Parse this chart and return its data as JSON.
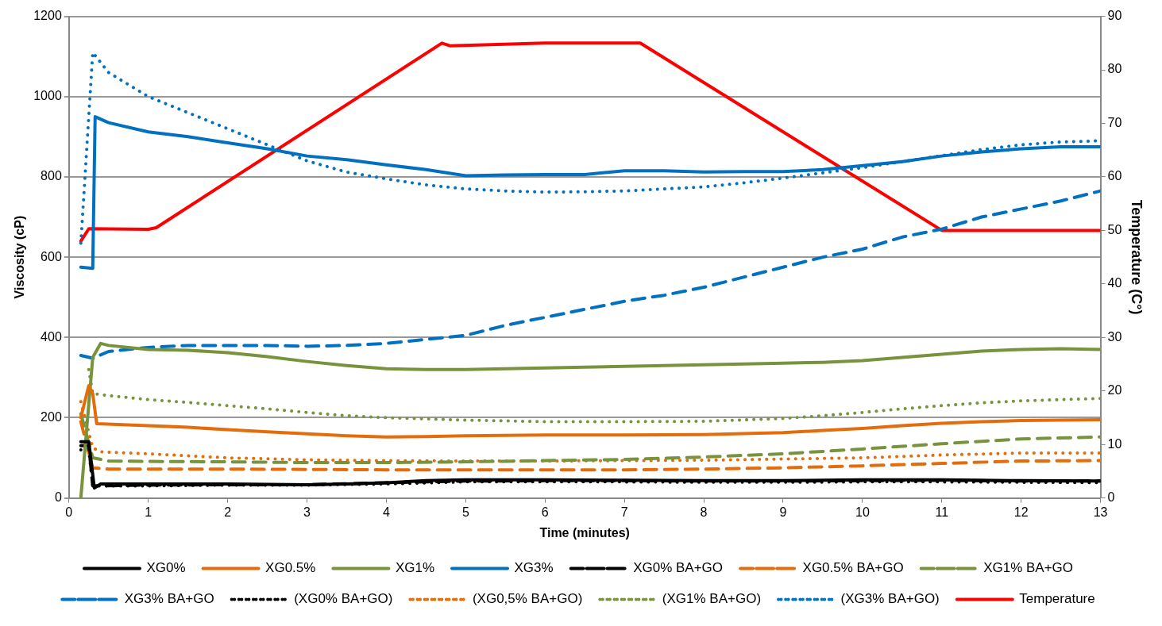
{
  "chart_data": {
    "type": "line",
    "xlabel": "Time (minutes)",
    "ylabel": "Viscosity (cP)",
    "y2label": "Temperature (C°)",
    "xlim": [
      0,
      13
    ],
    "xticks": [
      0,
      1,
      2,
      3,
      4,
      5,
      6,
      7,
      8,
      9,
      10,
      11,
      12,
      13
    ],
    "ylim": [
      0,
      1200
    ],
    "yticks": [
      0,
      200,
      400,
      600,
      800,
      1000,
      1200
    ],
    "y2lim": [
      0,
      90
    ],
    "y2ticks": [
      0,
      10,
      20,
      30,
      40,
      50,
      60,
      70,
      80,
      90
    ],
    "grid": "y",
    "legend": "bottom",
    "marker": "none",
    "series": [
      {
        "name": "XG0%",
        "color": "#000000",
        "line_style": "solid",
        "x": [
          0.15,
          0.25,
          0.32,
          0.4,
          1,
          2,
          3,
          3.5,
          4,
          4.5,
          5,
          6,
          7,
          8,
          9,
          10,
          11,
          12,
          13
        ],
        "values": [
          140,
          140,
          25,
          35,
          35,
          35,
          33,
          35,
          38,
          43,
          45,
          45,
          44,
          43,
          43,
          45,
          45,
          43,
          42
        ]
      },
      {
        "name": "XG0.5%",
        "color": "#e46c0a",
        "line_style": "solid",
        "x": [
          0.15,
          0.25,
          0.3,
          0.35,
          1,
          1.5,
          2,
          2.5,
          3,
          3.5,
          4,
          4.5,
          5,
          6,
          7,
          8,
          9,
          9.5,
          10,
          10.5,
          11,
          11.5,
          12,
          13
        ],
        "values": [
          200,
          280,
          260,
          185,
          180,
          176,
          170,
          165,
          160,
          155,
          152,
          153,
          155,
          157,
          157,
          158,
          163,
          168,
          173,
          180,
          186,
          190,
          193,
          195
        ]
      },
      {
        "name": "XG1%",
        "color": "#77933c",
        "line_style": "solid",
        "x": [
          0.15,
          0.3,
          0.4,
          0.5,
          1,
          1.5,
          2,
          2.5,
          3,
          3.5,
          4,
          4.5,
          5,
          5.5,
          6,
          6.5,
          7,
          7.5,
          8,
          8.5,
          9,
          9.5,
          10,
          10.5,
          11,
          11.5,
          12,
          12.5,
          13
        ],
        "values": [
          0,
          350,
          385,
          380,
          370,
          368,
          362,
          352,
          340,
          330,
          322,
          320,
          320,
          322,
          324,
          326,
          328,
          330,
          332,
          334,
          336,
          338,
          342,
          350,
          358,
          366,
          370,
          372,
          370
        ]
      },
      {
        "name": "XG3%",
        "color": "#0070c0",
        "line_style": "solid",
        "x": [
          0.15,
          0.3,
          0.33,
          0.5,
          1,
          1.5,
          2,
          2.5,
          3,
          3.5,
          4,
          4.5,
          5,
          5.5,
          6,
          6.5,
          7,
          7.5,
          8,
          8.5,
          9,
          9.5,
          10,
          10.5,
          11,
          11.5,
          12,
          12.5,
          13
        ],
        "values": [
          575,
          572,
          950,
          935,
          912,
          900,
          885,
          870,
          852,
          843,
          830,
          818,
          803,
          805,
          806,
          806,
          815,
          815,
          812,
          813,
          813,
          818,
          828,
          838,
          852,
          862,
          870,
          875,
          875
        ]
      },
      {
        "name": "XG0% BA+GO",
        "color": "#000000",
        "line_style": "dashed",
        "x": [
          0.15,
          0.25,
          0.3,
          1,
          2,
          3,
          4,
          5,
          6,
          7,
          8,
          9,
          10,
          11,
          12,
          13
        ],
        "values": [
          130,
          130,
          30,
          32,
          33,
          33,
          38,
          42,
          43,
          43,
          42,
          42,
          43,
          44,
          42,
          42
        ]
      },
      {
        "name": "XG0.5% BA+GO",
        "color": "#e46c0a",
        "line_style": "dashed",
        "x": [
          0.15,
          0.3,
          0.5,
          1,
          2,
          3,
          4,
          5,
          6,
          7,
          8,
          9,
          10,
          11,
          12,
          13
        ],
        "values": [
          190,
          75,
          72,
          72,
          72,
          71,
          70,
          70,
          70,
          70,
          72,
          75,
          80,
          86,
          92,
          93
        ]
      },
      {
        "name": "XG1% BA+GO",
        "color": "#77933c",
        "line_style": "dashed",
        "x": [
          0.15,
          0.3,
          0.5,
          1,
          2,
          3,
          4,
          5,
          6,
          7,
          8,
          9,
          10,
          11,
          12,
          13
        ],
        "values": [
          210,
          100,
          92,
          91,
          90,
          88,
          88,
          90,
          93,
          96,
          102,
          110,
          122,
          135,
          147,
          152
        ]
      },
      {
        "name": "XG3% BA+GO",
        "color": "#0070c0",
        "line_style": "dashed",
        "x": [
          0.15,
          0.3,
          0.5,
          1,
          1.5,
          2,
          2.5,
          3,
          3.5,
          4,
          4.5,
          5,
          5.5,
          6,
          6.5,
          7,
          7.5,
          8,
          8.5,
          9,
          9.5,
          10,
          10.5,
          11,
          11.5,
          12,
          12.5,
          13
        ],
        "values": [
          355,
          348,
          365,
          375,
          380,
          380,
          380,
          378,
          380,
          385,
          395,
          405,
          430,
          450,
          470,
          490,
          505,
          525,
          550,
          575,
          600,
          620,
          650,
          670,
          700,
          720,
          740,
          765
        ]
      },
      {
        "name": "(XG0% BA+GO)",
        "color": "#000000",
        "line_style": "dotted",
        "x": [
          0.15,
          0.25,
          0.3,
          1,
          2,
          3,
          4,
          5,
          6,
          7,
          8,
          9,
          10,
          11,
          12,
          13
        ],
        "values": [
          120,
          120,
          30,
          30,
          32,
          32,
          35,
          40,
          40,
          40,
          39,
          39,
          40,
          40,
          39,
          38
        ]
      },
      {
        "name": "(XG0,5% BA+GO)",
        "color": "#e46c0a",
        "line_style": "dotted",
        "x": [
          0.15,
          0.3,
          0.4,
          1,
          2,
          3,
          4,
          5,
          6,
          7,
          8,
          9,
          10,
          11,
          12,
          13
        ],
        "values": [
          240,
          125,
          115,
          110,
          100,
          95,
          93,
          92,
          92,
          93,
          94,
          97,
          100,
          107,
          112,
          112
        ]
      },
      {
        "name": "(XG1% BA+GO)",
        "color": "#77933c",
        "line_style": "dotted",
        "x": [
          0.25,
          0.3,
          0.5,
          1,
          1.5,
          2,
          2.5,
          3,
          3.5,
          4,
          4.5,
          5,
          5.5,
          6,
          7,
          8,
          9,
          9.5,
          10,
          10.5,
          11,
          11.5,
          12,
          12.5,
          13
        ],
        "values": [
          320,
          260,
          255,
          245,
          238,
          230,
          222,
          213,
          205,
          200,
          197,
          194,
          192,
          190,
          190,
          191,
          198,
          205,
          213,
          222,
          230,
          237,
          242,
          245,
          248
        ]
      },
      {
        "name": "(XG3% BA+GO)",
        "color": "#0070c0",
        "line_style": "dotted",
        "x": [
          0.15,
          0.3,
          0.5,
          1,
          1.5,
          2,
          2.5,
          3,
          3.5,
          4,
          4.5,
          5,
          5.5,
          6,
          6.5,
          7,
          7.5,
          8,
          8.5,
          9,
          9.5,
          10,
          10.5,
          11,
          11.5,
          12,
          12.5,
          13
        ],
        "values": [
          635,
          1110,
          1060,
          1000,
          960,
          920,
          880,
          840,
          812,
          795,
          780,
          770,
          765,
          762,
          763,
          765,
          770,
          775,
          785,
          797,
          810,
          823,
          838,
          853,
          868,
          880,
          887,
          890
        ]
      },
      {
        "name": "Temperature",
        "color": "#ff0000",
        "line_style": "solid",
        "axis": "y2",
        "x": [
          0.15,
          0.25,
          1,
          1.1,
          4.7,
          4.8,
          6,
          7.2,
          11,
          13
        ],
        "values": [
          48,
          50.3,
          50.2,
          50.5,
          85,
          84.5,
          85,
          85,
          50,
          50
        ]
      }
    ]
  }
}
